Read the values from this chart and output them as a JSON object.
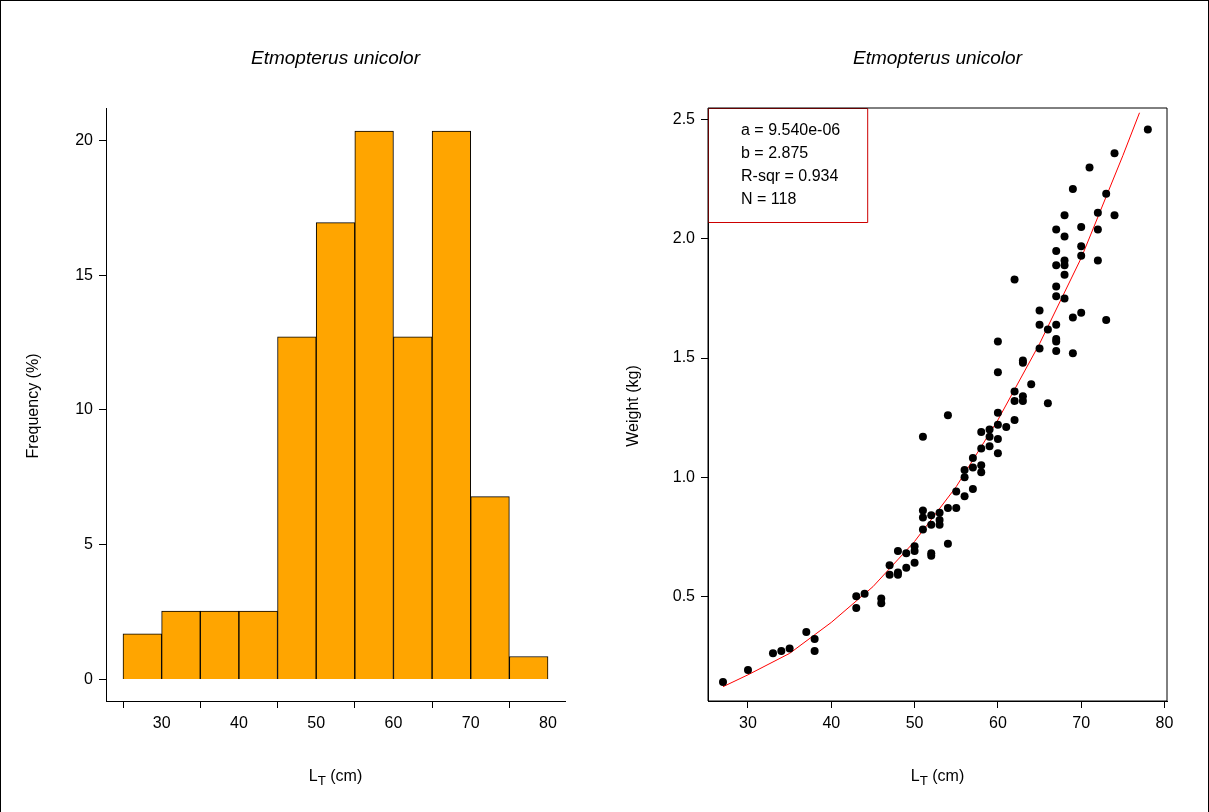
{
  "chart_data": [
    {
      "type": "histogram",
      "title": "Etmopterus unicolor",
      "xlabel": "L$_{T}$ (cm)",
      "ylabel": "Frequency (%)",
      "color": "#ffa500",
      "bins": [
        25,
        30,
        35,
        40,
        45,
        50,
        55,
        60,
        65,
        70,
        75,
        80
      ],
      "values": [
        1.69,
        2.54,
        2.54,
        2.54,
        12.71,
        16.95,
        20.34,
        12.71,
        20.34,
        6.78,
        0.85
      ],
      "xlim": [
        22.8,
        82.2
      ],
      "ylim": [
        -0.8,
        21.2
      ],
      "xticks": [
        30,
        40,
        50,
        60,
        70,
        80
      ],
      "yticks": [
        0,
        5,
        10,
        15,
        20
      ],
      "grid": false,
      "legend": false
    },
    {
      "type": "scatter",
      "title": "Etmopterus unicolor",
      "xlabel": "L$_{T}$ (cm)",
      "ylabel": "Weight (kg)",
      "series": [
        {
          "type": "scatter",
          "color": "#000000",
          "marker": "circle",
          "x": [
            27,
            30,
            33,
            34,
            35,
            37,
            38,
            38,
            43,
            43,
            44,
            46,
            46,
            47,
            47,
            48,
            48,
            48,
            49,
            49,
            50,
            50,
            50,
            51,
            51,
            51,
            51,
            52,
            52,
            52,
            52,
            53,
            53,
            53,
            54,
            54,
            54,
            55,
            55,
            56,
            56,
            56,
            57,
            57,
            57,
            58,
            58,
            58,
            58,
            59,
            59,
            59,
            60,
            60,
            60,
            60,
            60,
            60,
            61,
            62,
            62,
            62,
            62,
            63,
            63,
            63,
            63,
            64,
            65,
            65,
            65,
            66,
            66,
            67,
            67,
            67,
            67,
            67,
            67,
            67,
            67,
            67,
            68,
            68,
            68,
            68,
            68,
            68,
            69,
            69,
            69,
            70,
            70,
            70,
            70,
            71,
            72,
            72,
            72,
            73,
            73,
            74,
            74,
            78
          ],
          "values": [
            0.14,
            0.19,
            0.26,
            0.27,
            0.28,
            0.35,
            0.32,
            0.27,
            0.5,
            0.45,
            0.51,
            0.49,
            0.47,
            0.63,
            0.59,
            0.69,
            0.6,
            0.59,
            0.68,
            0.62,
            0.71,
            0.69,
            0.64,
            1.17,
            0.86,
            0.83,
            0.78,
            0.84,
            0.8,
            0.68,
            0.67,
            0.85,
            0.82,
            0.8,
            0.72,
            0.87,
            1.26,
            0.87,
            0.94,
            0.92,
            1.0,
            1.03,
            0.95,
            1.04,
            1.08,
            1.02,
            1.05,
            1.12,
            1.19,
            1.13,
            1.17,
            1.2,
            1.1,
            1.16,
            1.22,
            1.27,
            1.44,
            1.57,
            1.21,
            1.24,
            1.32,
            1.36,
            1.83,
            1.32,
            1.34,
            1.48,
            1.49,
            1.39,
            1.54,
            1.64,
            1.7,
            1.31,
            1.62,
            1.53,
            1.57,
            1.58,
            1.64,
            1.76,
            1.8,
            1.89,
            1.95,
            2.04,
            1.75,
            1.85,
            1.89,
            1.91,
            2.01,
            2.1,
            1.52,
            1.67,
            2.21,
            1.69,
            1.93,
            1.97,
            2.05,
            2.3,
            1.91,
            2.04,
            2.11,
            1.66,
            2.19,
            2.1,
            2.36,
            2.46
          ]
        },
        {
          "type": "line",
          "color": "#ff0000",
          "marker": "none",
          "x": [
            27,
            30,
            35,
            40,
            45,
            50,
            55,
            60,
            65,
            70,
            75,
            77
          ],
          "values": [
            0.12,
            0.17,
            0.26,
            0.39,
            0.54,
            0.73,
            0.96,
            1.24,
            1.56,
            1.92,
            2.35,
            2.53
          ]
        }
      ],
      "annotations": [
        "a = 9.540e-06",
        "b = 2.875",
        "R-sqr = 0.934",
        "N = 118"
      ],
      "xlim": [
        25.2,
        80.3
      ],
      "ylim": [
        0.06,
        2.55
      ],
      "xticks": [
        30,
        40,
        50,
        60,
        70,
        80
      ],
      "yticks": [
        0.5,
        {
          "value": 1,
          "label": "1.0"
        },
        1.5,
        {
          "value": 2,
          "label": "2.0"
        },
        2.5
      ],
      "grid": false,
      "legend": false
    }
  ]
}
